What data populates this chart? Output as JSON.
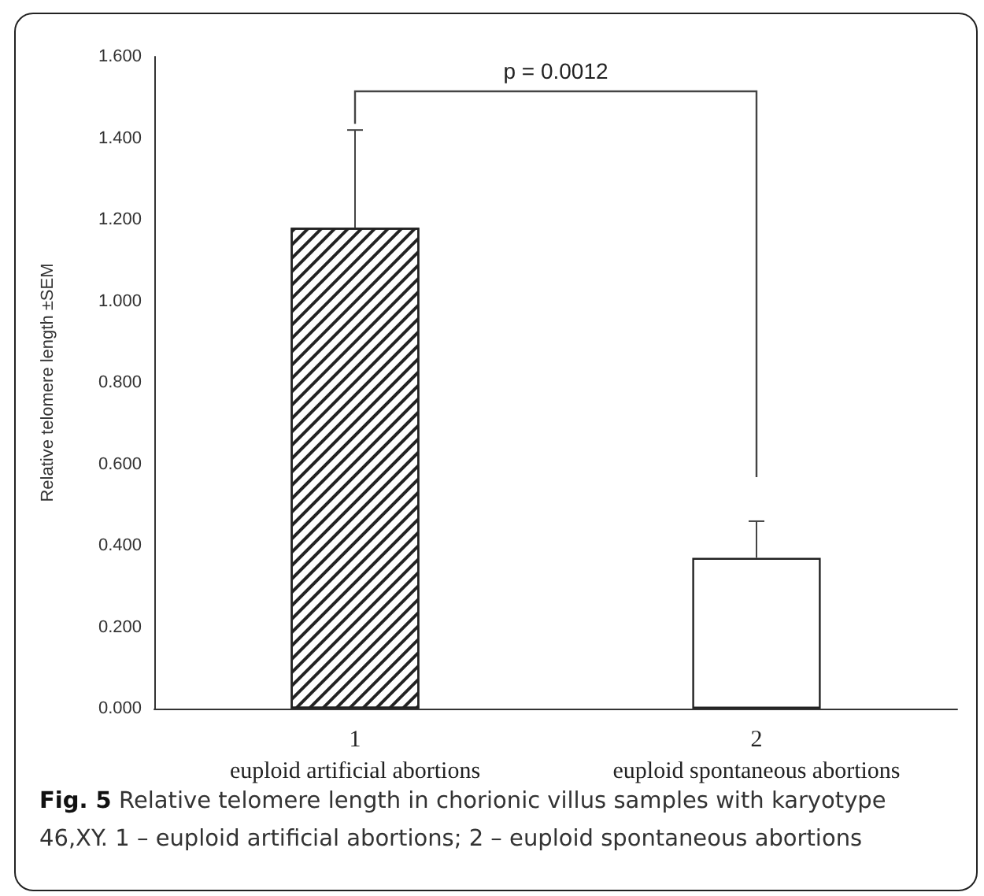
{
  "chart_data": {
    "type": "bar",
    "categories": [
      "1\neuploid artificial abortions",
      "2\neuploid spontaneous abortions"
    ],
    "values": [
      1.18,
      0.37
    ],
    "errors": [
      [
        1.18,
        1.42
      ],
      [
        0.37,
        0.46
      ]
    ],
    "colors": [
      "#ffffff",
      "#ffffff"
    ],
    "ylabel": "Relative telomere length ±SEM",
    "ylim": [
      0,
      1.6
    ],
    "yticks": [
      {
        "value": 0,
        "label": "0.000"
      },
      {
        "value": 0.2,
        "label": "0.200"
      },
      {
        "value": 0.4,
        "label": "0.400"
      },
      {
        "value": 0.6,
        "label": "0.600"
      },
      {
        "value": 0.8,
        "label": "0.800"
      },
      {
        "value": 1.0,
        "label": "1.000"
      },
      {
        "value": 1.2,
        "label": "1.200"
      },
      {
        "value": 1.4,
        "label": "1.400"
      },
      {
        "value": 1.6,
        "label": "1.600"
      }
    ],
    "grid": false,
    "annotations": [
      "p = 0.0012",
      "Fig. 5",
      "Relative telomere length in chorionic villus samples with karyotype 46,XY. 1 – euploid artificial abortions; 2 – euploid spontaneous abortions"
    ]
  }
}
